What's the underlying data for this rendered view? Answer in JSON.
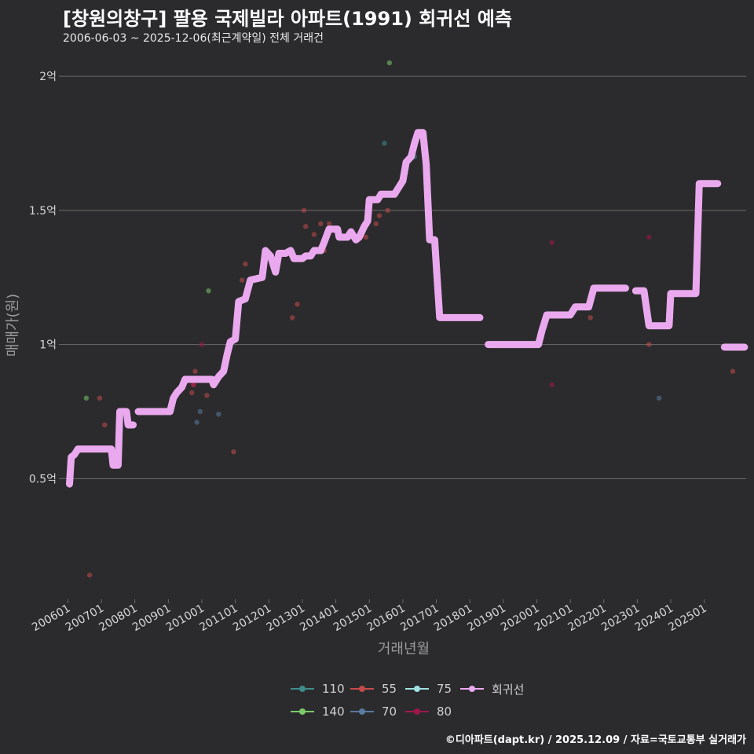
{
  "title": "[창원의창구] 팔용 국제빌라 아파트(1991) 회귀선 예측",
  "subtitle": "2006-06-03 ~ 2025-12-06(최근계약일) 전체 거래건",
  "credit": "©디아파트(dapt.kr) / 2025.12.09 / 자료=국토교통부 실거래가",
  "colors": {
    "background": "#2b2b2d",
    "grid": "#6a6a6a",
    "axis_text": "#d6d6d6",
    "axis_title": "#9a9a9a",
    "regression": "#eaa9ee"
  },
  "chart_data": {
    "type": "scatter",
    "xlabel": "거래년월",
    "ylabel": "매매가(원)",
    "xlim": [
      2005.85,
      2026.25
    ],
    "ylim": [
      0.05,
      2.05
    ],
    "y_ticks": [
      {
        "value": 0.5,
        "label": "0.5억"
      },
      {
        "value": 1.0,
        "label": "1억"
      },
      {
        "value": 1.5,
        "label": "1.5억"
      },
      {
        "value": 2.0,
        "label": "2억"
      }
    ],
    "x_ticks": [
      {
        "value": 2006.0,
        "label": "200601"
      },
      {
        "value": 2007.0,
        "label": "200701"
      },
      {
        "value": 2008.0,
        "label": "200801"
      },
      {
        "value": 2009.0,
        "label": "200901"
      },
      {
        "value": 2010.0,
        "label": "201001"
      },
      {
        "value": 2011.0,
        "label": "201101"
      },
      {
        "value": 2012.0,
        "label": "201201"
      },
      {
        "value": 2013.0,
        "label": "201301"
      },
      {
        "value": 2014.0,
        "label": "201401"
      },
      {
        "value": 2015.0,
        "label": "201501"
      },
      {
        "value": 2016.0,
        "label": "201601"
      },
      {
        "value": 2017.0,
        "label": "201701"
      },
      {
        "value": 2018.0,
        "label": "201801"
      },
      {
        "value": 2019.0,
        "label": "201901"
      },
      {
        "value": 2020.0,
        "label": "202001"
      },
      {
        "value": 2021.0,
        "label": "202101"
      },
      {
        "value": 2022.0,
        "label": "202201"
      },
      {
        "value": 2023.0,
        "label": "202301"
      },
      {
        "value": 2024.0,
        "label": "202401"
      },
      {
        "value": 2025.0,
        "label": "202501"
      }
    ],
    "series": [
      {
        "name": "110",
        "color": "#3f8c8c",
        "points": [
          [
            2015.45,
            1.75
          ],
          [
            2016.35,
            1.7
          ]
        ]
      },
      {
        "name": "140",
        "color": "#7bc96a",
        "points": [
          [
            2006.55,
            0.8
          ],
          [
            2010.2,
            1.2
          ],
          [
            2015.6,
            2.05
          ]
        ]
      },
      {
        "name": "55",
        "color": "#c44b4b",
        "points": [
          [
            2006.65,
            0.14
          ],
          [
            2006.95,
            0.8
          ],
          [
            2007.1,
            0.7
          ],
          [
            2009.7,
            0.82
          ],
          [
            2009.75,
            0.85
          ],
          [
            2009.8,
            0.9
          ],
          [
            2010.15,
            0.81
          ],
          [
            2010.95,
            0.6
          ],
          [
            2011.2,
            1.24
          ],
          [
            2011.3,
            1.3
          ],
          [
            2012.7,
            1.1
          ],
          [
            2012.85,
            1.15
          ],
          [
            2013.05,
            1.5
          ],
          [
            2013.1,
            1.44
          ],
          [
            2013.35,
            1.41
          ],
          [
            2013.55,
            1.45
          ],
          [
            2013.65,
            1.35
          ],
          [
            2013.8,
            1.45
          ],
          [
            2014.9,
            1.4
          ],
          [
            2015.2,
            1.45
          ],
          [
            2015.3,
            1.48
          ],
          [
            2015.55,
            1.5
          ],
          [
            2021.6,
            1.1
          ],
          [
            2023.35,
            1.0
          ],
          [
            2025.85,
            0.9
          ]
        ]
      },
      {
        "name": "70",
        "color": "#5a7aa0",
        "points": [
          [
            2009.85,
            0.71
          ],
          [
            2009.95,
            0.75
          ],
          [
            2010.5,
            0.74
          ],
          [
            2023.65,
            0.8
          ]
        ]
      },
      {
        "name": "75",
        "color": "#9fe0e0",
        "points": []
      },
      {
        "name": "80",
        "color": "#a0164a",
        "points": [
          [
            2009.75,
            0.85
          ],
          [
            2010.0,
            1.0
          ],
          [
            2020.45,
            1.38
          ],
          [
            2020.45,
            0.85
          ],
          [
            2023.35,
            1.4
          ]
        ]
      }
    ],
    "regression": {
      "name": "회귀선",
      "color": "#eaa9ee",
      "segments": [
        [
          [
            2006.05,
            0.48
          ],
          [
            2006.1,
            0.58
          ],
          [
            2006.2,
            0.59
          ],
          [
            2006.3,
            0.61
          ],
          [
            2007.3,
            0.61
          ],
          [
            2007.35,
            0.55
          ],
          [
            2007.5,
            0.55
          ],
          [
            2007.55,
            0.75
          ],
          [
            2007.75,
            0.75
          ],
          [
            2007.8,
            0.7
          ],
          [
            2007.95,
            0.7
          ]
        ],
        [
          [
            2008.1,
            0.75
          ],
          [
            2009.05,
            0.75
          ],
          [
            2009.15,
            0.8
          ],
          [
            2009.25,
            0.82
          ],
          [
            2009.4,
            0.84
          ],
          [
            2009.5,
            0.87
          ],
          [
            2010.3,
            0.87
          ],
          [
            2010.35,
            0.85
          ],
          [
            2010.5,
            0.88
          ],
          [
            2010.65,
            0.9
          ],
          [
            2010.75,
            0.96
          ],
          [
            2010.85,
            1.01
          ],
          [
            2011.0,
            1.02
          ],
          [
            2011.1,
            1.16
          ],
          [
            2011.3,
            1.17
          ],
          [
            2011.45,
            1.24
          ],
          [
            2011.8,
            1.25
          ],
          [
            2011.9,
            1.35
          ],
          [
            2012.05,
            1.33
          ],
          [
            2012.2,
            1.27
          ],
          [
            2012.3,
            1.34
          ],
          [
            2012.5,
            1.34
          ],
          [
            2012.65,
            1.35
          ],
          [
            2012.75,
            1.32
          ],
          [
            2013.0,
            1.32
          ],
          [
            2013.1,
            1.33
          ],
          [
            2013.25,
            1.33
          ],
          [
            2013.35,
            1.35
          ],
          [
            2013.55,
            1.35
          ],
          [
            2013.65,
            1.38
          ],
          [
            2013.8,
            1.43
          ],
          [
            2014.05,
            1.43
          ],
          [
            2014.1,
            1.4
          ],
          [
            2014.35,
            1.4
          ],
          [
            2014.45,
            1.42
          ],
          [
            2014.6,
            1.39
          ],
          [
            2014.7,
            1.4
          ],
          [
            2014.85,
            1.44
          ],
          [
            2014.95,
            1.46
          ],
          [
            2015.0,
            1.54
          ],
          [
            2015.25,
            1.54
          ],
          [
            2015.35,
            1.56
          ],
          [
            2015.75,
            1.56
          ],
          [
            2015.9,
            1.59
          ],
          [
            2016.0,
            1.61
          ],
          [
            2016.1,
            1.68
          ],
          [
            2016.25,
            1.7
          ],
          [
            2016.35,
            1.75
          ],
          [
            2016.45,
            1.79
          ],
          [
            2016.6,
            1.79
          ],
          [
            2016.7,
            1.67
          ],
          [
            2016.8,
            1.39
          ],
          [
            2016.95,
            1.39
          ],
          [
            2017.1,
            1.1
          ],
          [
            2018.3,
            1.1
          ]
        ],
        [
          [
            2018.55,
            1.0
          ],
          [
            2020.05,
            1.0
          ],
          [
            2020.15,
            1.05
          ],
          [
            2020.3,
            1.11
          ],
          [
            2021.0,
            1.11
          ],
          [
            2021.15,
            1.14
          ],
          [
            2021.55,
            1.14
          ],
          [
            2021.7,
            1.21
          ],
          [
            2022.65,
            1.21
          ]
        ],
        [
          [
            2022.95,
            1.2
          ],
          [
            2023.2,
            1.2
          ],
          [
            2023.35,
            1.07
          ],
          [
            2023.95,
            1.07
          ],
          [
            2024.0,
            1.19
          ],
          [
            2024.75,
            1.19
          ],
          [
            2024.85,
            1.6
          ],
          [
            2025.4,
            1.6
          ]
        ],
        [
          [
            2025.6,
            0.99
          ],
          [
            2026.2,
            0.99
          ]
        ]
      ]
    }
  }
}
